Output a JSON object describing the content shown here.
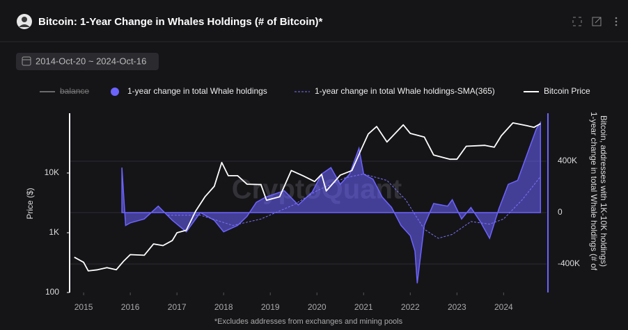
{
  "chart_data": {
    "type": "line",
    "title": "Bitcoin: 1-Year Change in Whales Holdings (# of Bitcoin)*",
    "date_range": "2014-Oct-20 ~ 2024-Oct-16",
    "watermark": "CryptoQuant",
    "footnote": "*Excludes addresses from exchanges and mining pools",
    "y_label": "Price ($)",
    "y2_label": [
      "1-year change in total Whale holdings (# of",
      "Bitcoin, addresses with 1K-10K holdings)"
    ],
    "xlim": [
      2014.7,
      2024.92
    ],
    "xticks": [
      2015,
      2016,
      2017,
      2018,
      2019,
      2020,
      2021,
      2022,
      2023,
      2024
    ],
    "ylim": [
      100,
      100000
    ],
    "y_scale": "log",
    "yticks": [
      100,
      {
        "value": 1000,
        "label": "1K"
      },
      {
        "value": 10000,
        "label": "10K"
      }
    ],
    "y2lim": [
      -622000,
      773000
    ],
    "y2ticks": [
      {
        "value": -400000,
        "label": "-400K"
      },
      0,
      {
        "value": 400000,
        "label": "400K"
      }
    ],
    "grid": true,
    "series": [
      {
        "name": "balance",
        "color": "#6b6b6b",
        "visible": false
      },
      {
        "name": "1-year change in total Whale holdings",
        "color": "#6c63ff",
        "style": "area",
        "axis": "y2",
        "x": [
          2015.82,
          2015.9,
          2016.0,
          2016.3,
          2016.6,
          2016.9,
          2017.2,
          2017.5,
          2017.8,
          2018.0,
          2018.3,
          2018.5,
          2018.7,
          2018.9,
          2019.3,
          2019.6,
          2019.9,
          2020.1,
          2020.3,
          2020.5,
          2020.7,
          2020.9,
          2021.0,
          2021.2,
          2021.4,
          2021.6,
          2021.8,
          2022.0,
          2022.1,
          2022.15,
          2022.3,
          2022.5,
          2022.8,
          2022.9,
          2023.1,
          2023.3,
          2023.5,
          2023.7,
          2023.9,
          2024.1,
          2024.3,
          2024.5,
          2024.7,
          2024.79
        ],
        "values": [
          350000,
          -100000,
          -80000,
          -50000,
          50000,
          -60000,
          -150000,
          0,
          -60000,
          -150000,
          -100000,
          -30000,
          80000,
          120000,
          170000,
          60000,
          160000,
          300000,
          350000,
          220000,
          300000,
          500000,
          300000,
          260000,
          120000,
          40000,
          -100000,
          -180000,
          -300000,
          -550000,
          -100000,
          70000,
          50000,
          100000,
          -50000,
          40000,
          -70000,
          -200000,
          30000,
          220000,
          250000,
          450000,
          650000,
          700000
        ]
      },
      {
        "name": "1-year change in total Whale holdings-SMA(365)",
        "color": "#7b74ff",
        "style": "dashed",
        "axis": "y2",
        "x": [
          2016.8,
          2017.5,
          2018.2,
          2018.8,
          2019.5,
          2020.0,
          2020.6,
          2021.0,
          2021.5,
          2021.9,
          2022.3,
          2022.6,
          2022.9,
          2023.3,
          2023.7,
          2024.0,
          2024.4,
          2024.79
        ],
        "values": [
          -20000,
          -20000,
          -100000,
          -50000,
          60000,
          170000,
          270000,
          300000,
          250000,
          100000,
          -130000,
          -200000,
          -170000,
          -70000,
          -90000,
          -50000,
          100000,
          280000
        ]
      },
      {
        "name": "Bitcoin Price",
        "color": "#ffffff",
        "style": "solid",
        "x": [
          2014.8,
          2015.0,
          2015.1,
          2015.3,
          2015.5,
          2015.7,
          2015.85,
          2016.0,
          2016.3,
          2016.5,
          2016.7,
          2016.9,
          2017.0,
          2017.2,
          2017.4,
          2017.6,
          2017.8,
          2017.96,
          2018.1,
          2018.3,
          2018.5,
          2018.8,
          2018.92,
          2019.2,
          2019.45,
          2019.7,
          2019.95,
          2020.1,
          2020.2,
          2020.5,
          2020.75,
          2020.95,
          2021.1,
          2021.28,
          2021.5,
          2021.85,
          2022.0,
          2022.3,
          2022.5,
          2022.85,
          2023.0,
          2023.2,
          2023.6,
          2023.8,
          2023.95,
          2024.2,
          2024.5,
          2024.65,
          2024.79
        ],
        "values": [
          390,
          320,
          230,
          240,
          260,
          240,
          330,
          430,
          420,
          650,
          610,
          740,
          1000,
          1100,
          2300,
          4000,
          6000,
          15000,
          9000,
          9000,
          6500,
          6400,
          3500,
          4000,
          11000,
          9000,
          7200,
          9500,
          5000,
          9200,
          11000,
          25000,
          45000,
          60000,
          33000,
          64000,
          46000,
          40000,
          20000,
          17000,
          17000,
          28000,
          29000,
          27000,
          42000,
          69000,
          62000,
          58000,
          67000
        ]
      }
    ]
  }
}
